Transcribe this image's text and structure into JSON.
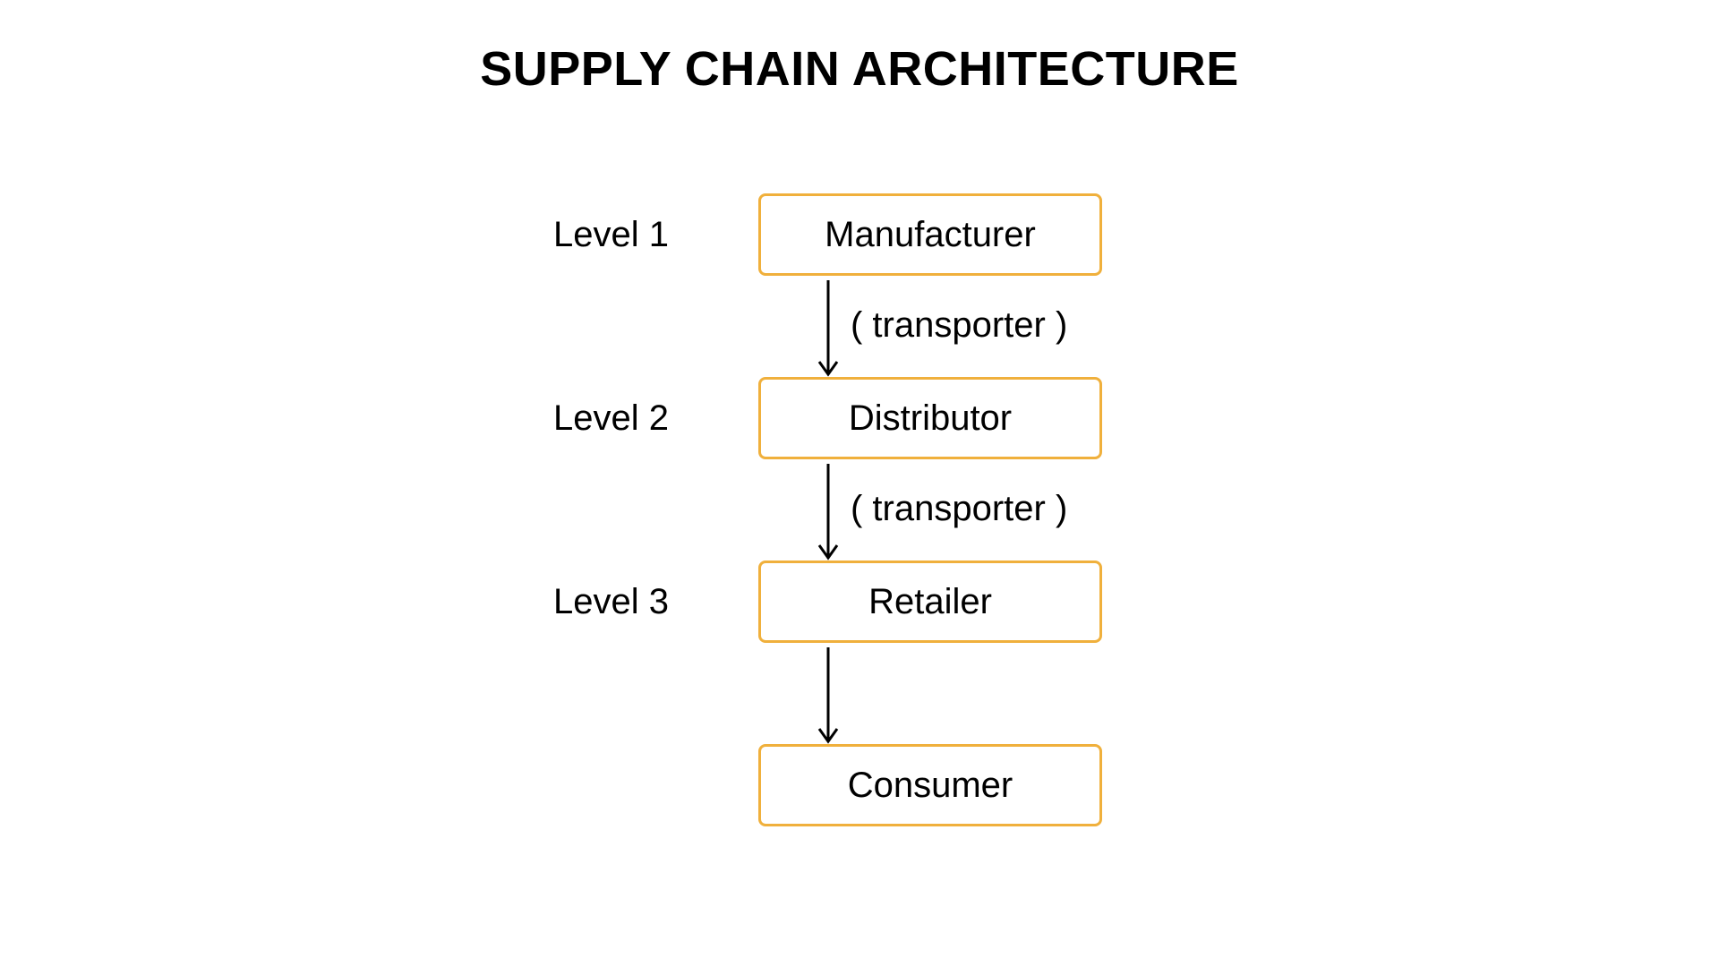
{
  "title": "SUPPLY CHAIN ARCHITECTURE",
  "levels": [
    {
      "label": "Level 1"
    },
    {
      "label": "Level 2"
    },
    {
      "label": "Level 3"
    }
  ],
  "nodes": [
    {
      "label": "Manufacturer"
    },
    {
      "label": "Distributor"
    },
    {
      "label": "Retailer"
    },
    {
      "label": "Consumer"
    }
  ],
  "edges": [
    {
      "from": "Manufacturer",
      "to": "Distributor",
      "label": "( transporter )"
    },
    {
      "from": "Distributor",
      "to": "Retailer",
      "label": "( transporter )"
    },
    {
      "from": "Retailer",
      "to": "Consumer",
      "label": ""
    }
  ],
  "colors": {
    "box_border": "#F0B03C",
    "arrow": "#000000",
    "text": "#000000"
  }
}
